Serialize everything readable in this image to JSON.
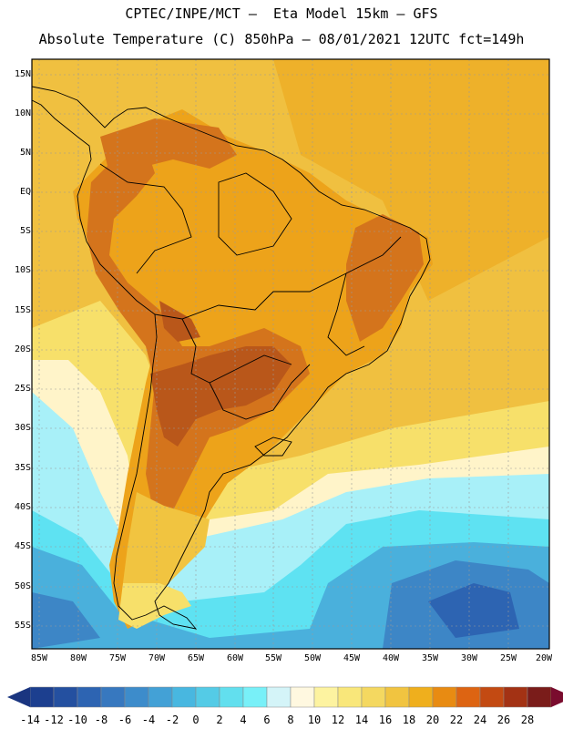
{
  "header": {
    "line1": "CPTEC/INPE/MCT –  Eta Model 15km – GFS",
    "line2": "Absolute Temperature (C) 850hPa – 08/01/2021 12UTC fct=149h"
  },
  "map": {
    "lat_labels": [
      "15N",
      "10N",
      "5N",
      "EQ",
      "5S",
      "10S",
      "15S",
      "20S",
      "25S",
      "30S",
      "35S",
      "40S",
      "45S",
      "50S",
      "55S"
    ],
    "lon_labels": [
      "85W",
      "80W",
      "75W",
      "70W",
      "65W",
      "60W",
      "55W",
      "50W",
      "45W",
      "40W",
      "35W",
      "30W",
      "25W",
      "20W"
    ],
    "field_colors": {
      "ocean_warm": "#f0c040",
      "continent": "#eda31a",
      "hot": "#d4741c",
      "hottest": "#b9571a",
      "mild": "#f7e06a",
      "cool": "#fff4c9",
      "cold1": "#a8f0f8",
      "cold2": "#5ee2f2",
      "cold3": "#4ab0dc",
      "cold4": "#3d86c6"
    }
  },
  "colorbar": {
    "labels": [
      "-14",
      "-12",
      "-10",
      "-8",
      "-6",
      "-4",
      "-2",
      "0",
      "2",
      "4",
      "6",
      "8",
      "10",
      "12",
      "14",
      "16",
      "18",
      "20",
      "22",
      "24",
      "26",
      "28"
    ],
    "colors": [
      "#1c3f8f",
      "#2450a0",
      "#2d64b2",
      "#3778bf",
      "#3d8ccb",
      "#43a1d6",
      "#48b7e0",
      "#54cbe6",
      "#62dfee",
      "#78f0f8",
      "#d4f4f8",
      "#fff8e0",
      "#fdf3a0",
      "#f9e77a",
      "#f4d860",
      "#f1c440",
      "#efaf1d",
      "#e88b12",
      "#dd6412",
      "#c34a12",
      "#a33214",
      "#7a1c1a"
    ],
    "low_end_color": "#1a3580",
    "high_end_color": "#7a0c2e"
  }
}
